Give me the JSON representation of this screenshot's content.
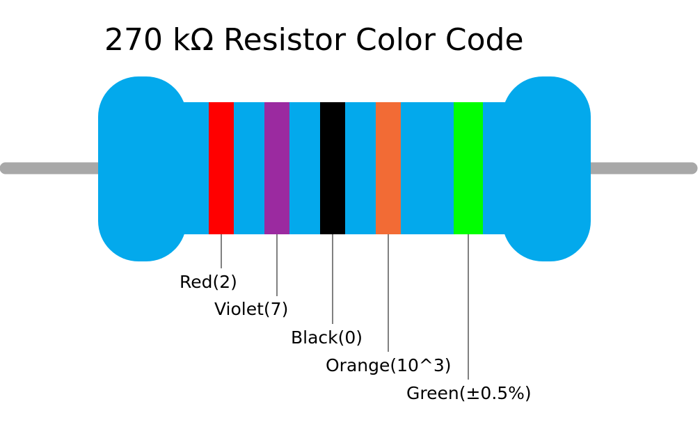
{
  "title": "270 kΩ Resistor Color Code",
  "colors": {
    "body": "#03A9EC",
    "lead": "#A8A8A8",
    "leader_line": "#000000"
  },
  "bands": [
    {
      "color_name": "Red",
      "label": "Red(2)",
      "hex": "#FF0000"
    },
    {
      "color_name": "Violet",
      "label": "Violet(7)",
      "hex": "#9B2AA0"
    },
    {
      "color_name": "Black",
      "label": "Black(0)",
      "hex": "#000000"
    },
    {
      "color_name": "Orange",
      "label": "Orange(10^3)",
      "hex": "#F26B35"
    },
    {
      "color_name": "Green",
      "label": "Green(±0.5%)",
      "hex": "#00FF00"
    }
  ]
}
